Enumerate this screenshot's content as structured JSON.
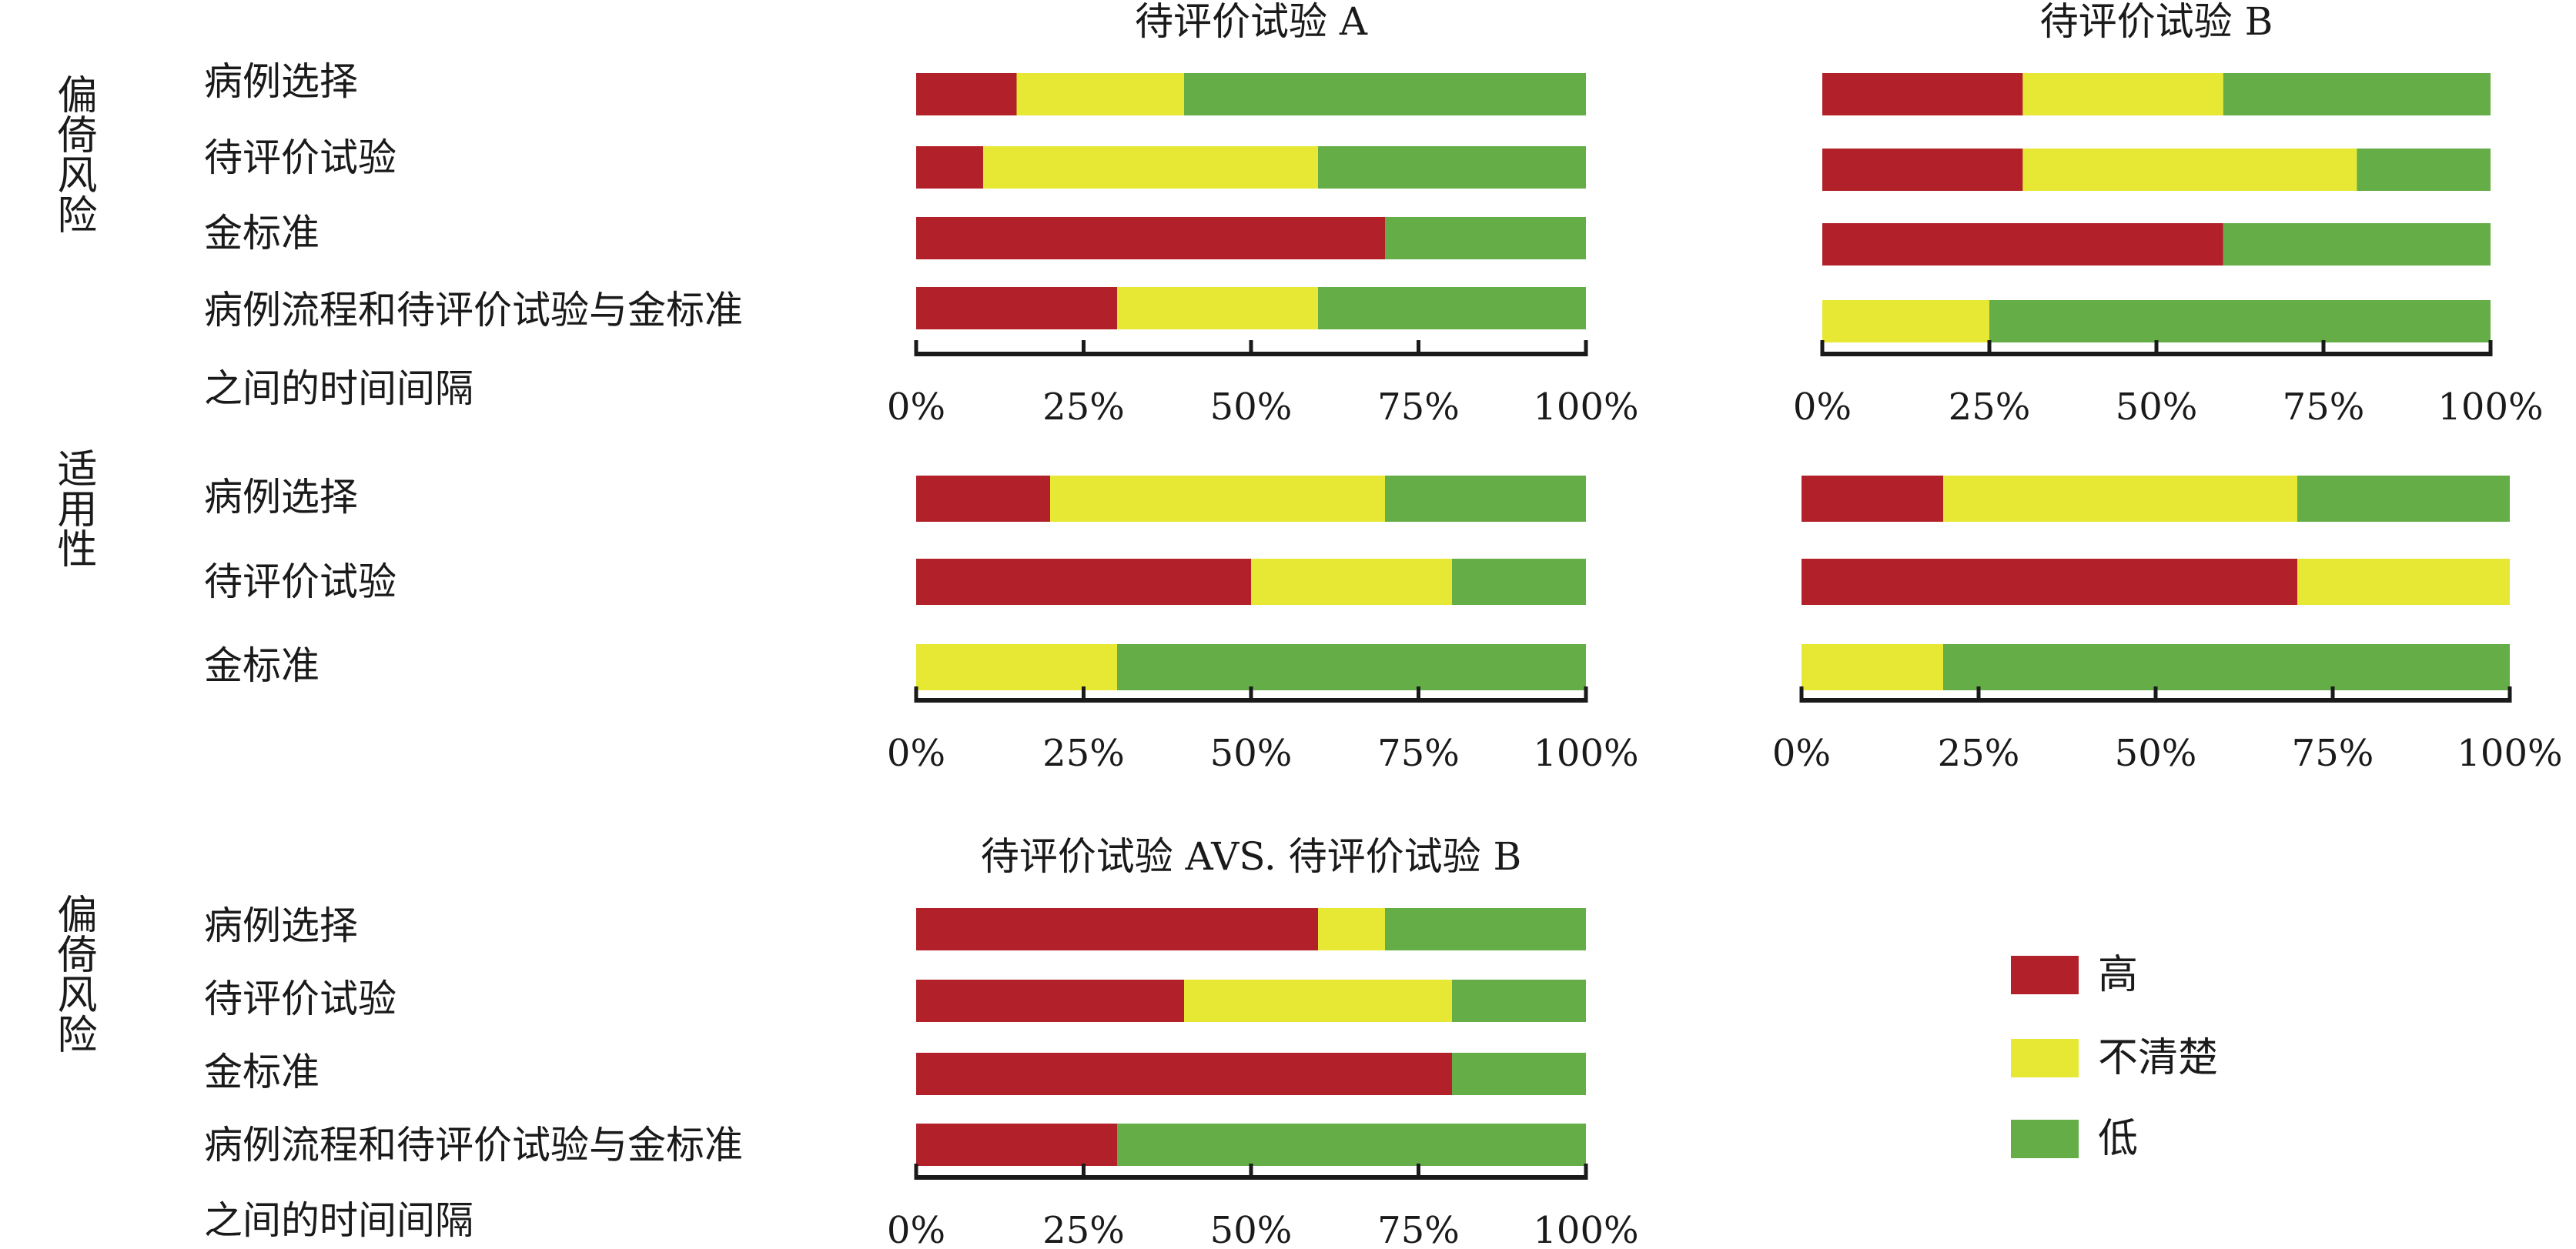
{
  "colors": {
    "high": "#b22129",
    "unclear": "#e6e833",
    "low": "#64ad47"
  },
  "legend": [
    {
      "key": "high",
      "label": "高"
    },
    {
      "key": "unclear",
      "label": "不清楚"
    },
    {
      "key": "low",
      "label": "低"
    }
  ],
  "side_labels": {
    "bias": "偏倚风险",
    "applicability": "适用性"
  },
  "row_labels": {
    "bias": [
      "病例选择",
      "待评价试验",
      "金标准",
      "病例流程和待评价试验与金标准",
      "之间的时间间隔"
    ],
    "applicability": [
      "病例选择",
      "待评价试验",
      "金标准"
    ]
  },
  "chart_data": [
    {
      "id": "bias-A",
      "type": "bar",
      "stacked": true,
      "orientation": "horizontal",
      "title": "待评价试验 A",
      "categories": [
        "病例选择",
        "待评价试验",
        "金标准",
        "病例流程和待评价试验与金标准 之间的时间间隔"
      ],
      "series": [
        {
          "name": "高",
          "values": [
            15,
            10,
            70,
            30
          ]
        },
        {
          "name": "不清楚",
          "values": [
            25,
            50,
            0,
            30
          ]
        },
        {
          "name": "低",
          "values": [
            60,
            40,
            30,
            40
          ]
        }
      ],
      "xlim": [
        0,
        100
      ],
      "xticks": [
        "0%",
        "25%",
        "50%",
        "75%",
        "100%"
      ]
    },
    {
      "id": "bias-B",
      "type": "bar",
      "stacked": true,
      "orientation": "horizontal",
      "title": "待评价试验 B",
      "categories": [
        "病例选择",
        "待评价试验",
        "金标准",
        "病例流程和待评价试验与金标准 之间的时间间隔"
      ],
      "series": [
        {
          "name": "高",
          "values": [
            30,
            30,
            60,
            0
          ]
        },
        {
          "name": "不清楚",
          "values": [
            30,
            50,
            0,
            25
          ]
        },
        {
          "name": "低",
          "values": [
            40,
            20,
            40,
            75
          ]
        }
      ],
      "xlim": [
        0,
        100
      ],
      "xticks": [
        "0%",
        "25%",
        "50%",
        "75%",
        "100%"
      ]
    },
    {
      "id": "applicability-A",
      "type": "bar",
      "stacked": true,
      "orientation": "horizontal",
      "title": "",
      "categories": [
        "病例选择",
        "待评价试验",
        "金标准"
      ],
      "series": [
        {
          "name": "高",
          "values": [
            20,
            50,
            0
          ]
        },
        {
          "name": "不清楚",
          "values": [
            50,
            30,
            30
          ]
        },
        {
          "name": "低",
          "values": [
            30,
            20,
            70
          ]
        }
      ],
      "xlim": [
        0,
        100
      ],
      "xticks": [
        "0%",
        "25%",
        "50%",
        "75%",
        "100%"
      ]
    },
    {
      "id": "applicability-B",
      "type": "bar",
      "stacked": true,
      "orientation": "horizontal",
      "title": "",
      "categories": [
        "病例选择",
        "待评价试验",
        "金标准"
      ],
      "series": [
        {
          "name": "高",
          "values": [
            20,
            70,
            0
          ]
        },
        {
          "name": "不清楚",
          "values": [
            50,
            30,
            20
          ]
        },
        {
          "name": "低",
          "values": [
            30,
            0,
            80
          ]
        }
      ],
      "xlim": [
        0,
        100
      ],
      "xticks": [
        "0%",
        "25%",
        "50%",
        "75%",
        "100%"
      ]
    },
    {
      "id": "bias-AvsB",
      "type": "bar",
      "stacked": true,
      "orientation": "horizontal",
      "title": "待评价试验 AVS. 待评价试验 B",
      "categories": [
        "病例选择",
        "待评价试验",
        "金标准",
        "病例流程和待评价试验与金标准 之间的时间间隔"
      ],
      "series": [
        {
          "name": "高",
          "values": [
            60,
            40,
            80,
            30
          ]
        },
        {
          "name": "不清楚",
          "values": [
            10,
            40,
            0,
            0
          ]
        },
        {
          "name": "低",
          "values": [
            30,
            20,
            20,
            70
          ]
        }
      ],
      "xlim": [
        0,
        100
      ],
      "xticks": [
        "0%",
        "25%",
        "50%",
        "75%",
        "100%"
      ]
    }
  ]
}
